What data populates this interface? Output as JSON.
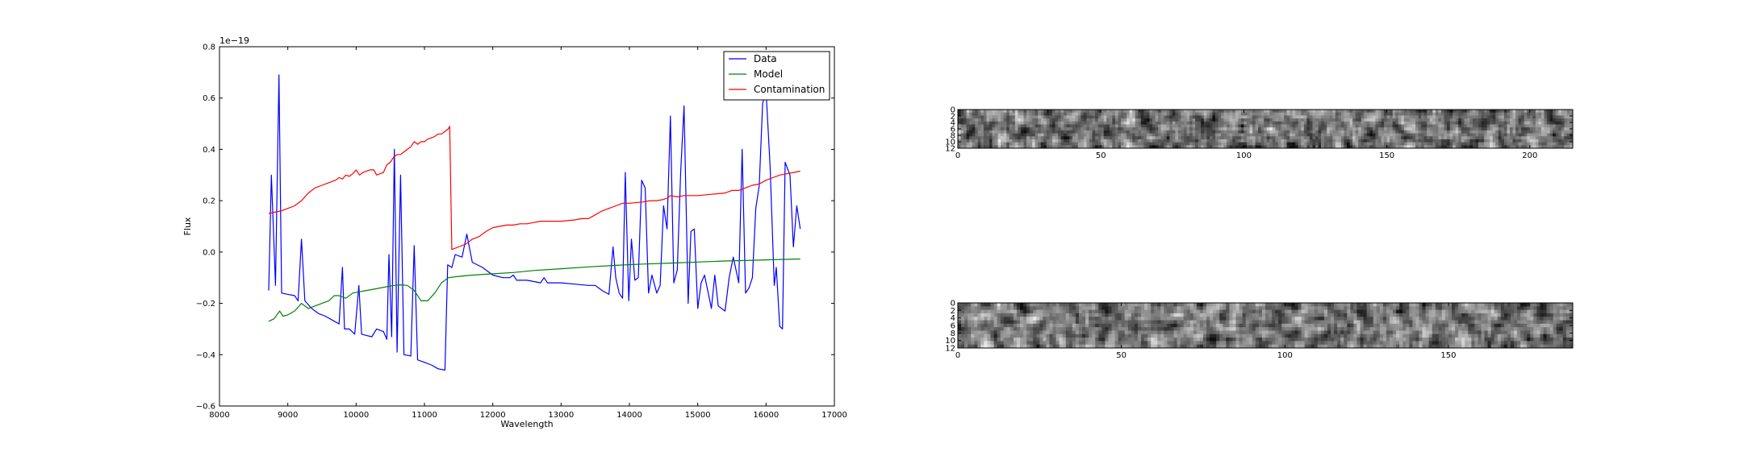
{
  "chart_data": [
    {
      "type": "line",
      "xlabel": "Wavelength",
      "ylabel": "Flux",
      "y_offset_label": "1e−19",
      "xlim": [
        8000,
        17000
      ],
      "ylim": [
        -0.6,
        0.8
      ],
      "xticks": [
        8000,
        9000,
        10000,
        11000,
        12000,
        13000,
        14000,
        15000,
        16000,
        17000
      ],
      "yticks": [
        -0.6,
        -0.4,
        -0.2,
        0.0,
        0.2,
        0.4,
        0.6,
        0.8
      ],
      "ytick_labels": [
        "−0.6",
        "−0.4",
        "−0.2",
        "0.0",
        "0.2",
        "0.4",
        "0.6",
        "0.8"
      ],
      "legend_position": "top-right",
      "series": [
        {
          "name": "Data",
          "color": "#0000ff",
          "points": [
            [
              8720,
              -0.15
            ],
            [
              8760,
              0.3
            ],
            [
              8820,
              -0.13
            ],
            [
              8870,
              0.69
            ],
            [
              8910,
              -0.16
            ],
            [
              9000,
              -0.165
            ],
            [
              9100,
              -0.17
            ],
            [
              9150,
              -0.19
            ],
            [
              9200,
              0.05
            ],
            [
              9250,
              -0.19
            ],
            [
              9350,
              -0.22
            ],
            [
              9450,
              -0.24
            ],
            [
              9550,
              -0.25
            ],
            [
              9650,
              -0.265
            ],
            [
              9750,
              -0.28
            ],
            [
              9800,
              -0.06
            ],
            [
              9830,
              -0.3
            ],
            [
              9900,
              -0.3
            ],
            [
              9980,
              -0.32
            ],
            [
              10040,
              -0.13
            ],
            [
              10080,
              -0.32
            ],
            [
              10150,
              -0.325
            ],
            [
              10230,
              -0.33
            ],
            [
              10300,
              -0.3
            ],
            [
              10400,
              -0.31
            ],
            [
              10450,
              -0.34
            ],
            [
              10480,
              -0.01
            ],
            [
              10520,
              -0.33
            ],
            [
              10560,
              0.4
            ],
            [
              10600,
              -0.39
            ],
            [
              10650,
              0.3
            ],
            [
              10700,
              -0.4
            ],
            [
              10800,
              -0.405
            ],
            [
              10850,
              0.025
            ],
            [
              10900,
              -0.42
            ],
            [
              11000,
              -0.43
            ],
            [
              11100,
              -0.44
            ],
            [
              11200,
              -0.455
            ],
            [
              11300,
              -0.46
            ],
            [
              11340,
              -0.05
            ],
            [
              11400,
              -0.06
            ],
            [
              11450,
              -0.01
            ],
            [
              11550,
              -0.02
            ],
            [
              11620,
              0.07
            ],
            [
              11700,
              -0.04
            ],
            [
              11850,
              -0.06
            ],
            [
              12000,
              -0.09
            ],
            [
              12150,
              -0.1
            ],
            [
              12250,
              -0.1
            ],
            [
              12300,
              -0.09
            ],
            [
              12350,
              -0.11
            ],
            [
              12500,
              -0.11
            ],
            [
              12600,
              -0.115
            ],
            [
              12700,
              -0.12
            ],
            [
              12750,
              -0.1
            ],
            [
              12800,
              -0.12
            ],
            [
              13000,
              -0.12
            ],
            [
              13200,
              -0.125
            ],
            [
              13400,
              -0.13
            ],
            [
              13500,
              -0.13
            ],
            [
              13600,
              -0.15
            ],
            [
              13700,
              -0.165
            ],
            [
              13760,
              0.02
            ],
            [
              13800,
              -0.1
            ],
            [
              13850,
              -0.16
            ],
            [
              13900,
              -0.18
            ],
            [
              13940,
              0.31
            ],
            [
              13990,
              -0.19
            ],
            [
              14030,
              0.05
            ],
            [
              14080,
              -0.11
            ],
            [
              14130,
              -0.1
            ],
            [
              14180,
              0.28
            ],
            [
              14230,
              0.25
            ],
            [
              14280,
              -0.16
            ],
            [
              14330,
              -0.09
            ],
            [
              14400,
              -0.16
            ],
            [
              14450,
              -0.13
            ],
            [
              14500,
              0.18
            ],
            [
              14550,
              0.09
            ],
            [
              14600,
              0.53
            ],
            [
              14650,
              -0.12
            ],
            [
              14700,
              -0.07
            ],
            [
              14750,
              0.31
            ],
            [
              14800,
              0.57
            ],
            [
              14860,
              -0.2
            ],
            [
              14900,
              0.08
            ],
            [
              14950,
              0.09
            ],
            [
              15000,
              -0.22
            ],
            [
              15050,
              -0.12
            ],
            [
              15100,
              -0.09
            ],
            [
              15200,
              -0.22
            ],
            [
              15250,
              -0.09
            ],
            [
              15300,
              -0.21
            ],
            [
              15400,
              -0.23
            ],
            [
              15460,
              -0.1
            ],
            [
              15520,
              -0.02
            ],
            [
              15600,
              -0.12
            ],
            [
              15650,
              0.4
            ],
            [
              15700,
              -0.16
            ],
            [
              15750,
              -0.14
            ],
            [
              15800,
              -0.1
            ],
            [
              15850,
              0.17
            ],
            [
              15900,
              0.26
            ],
            [
              15950,
              0.58
            ],
            [
              16000,
              0.63
            ],
            [
              16060,
              0.33
            ],
            [
              16120,
              -0.13
            ],
            [
              16150,
              -0.06
            ],
            [
              16200,
              -0.29
            ],
            [
              16240,
              -0.3
            ],
            [
              16280,
              0.35
            ],
            [
              16350,
              0.3
            ],
            [
              16400,
              0.02
            ],
            [
              16450,
              0.18
            ],
            [
              16500,
              0.09
            ]
          ]
        },
        {
          "name": "Model",
          "color": "#008000",
          "points": [
            [
              8720,
              -0.27
            ],
            [
              8800,
              -0.26
            ],
            [
              8880,
              -0.23
            ],
            [
              8930,
              -0.25
            ],
            [
              9000,
              -0.245
            ],
            [
              9100,
              -0.23
            ],
            [
              9200,
              -0.2
            ],
            [
              9300,
              -0.22
            ],
            [
              9400,
              -0.21
            ],
            [
              9500,
              -0.2
            ],
            [
              9600,
              -0.19
            ],
            [
              9680,
              -0.17
            ],
            [
              9750,
              -0.17
            ],
            [
              9850,
              -0.18
            ],
            [
              9950,
              -0.16
            ],
            [
              10050,
              -0.155
            ],
            [
              10150,
              -0.15
            ],
            [
              10250,
              -0.145
            ],
            [
              10350,
              -0.14
            ],
            [
              10450,
              -0.135
            ],
            [
              10550,
              -0.13
            ],
            [
              10650,
              -0.128
            ],
            [
              10750,
              -0.13
            ],
            [
              10850,
              -0.15
            ],
            [
              10950,
              -0.19
            ],
            [
              11050,
              -0.19
            ],
            [
              11150,
              -0.16
            ],
            [
              11250,
              -0.12
            ],
            [
              11350,
              -0.1
            ],
            [
              11500,
              -0.095
            ],
            [
              11700,
              -0.09
            ],
            [
              12000,
              -0.085
            ],
            [
              12300,
              -0.08
            ],
            [
              12600,
              -0.072
            ],
            [
              13000,
              -0.065
            ],
            [
              13400,
              -0.058
            ],
            [
              13800,
              -0.052
            ],
            [
              14200,
              -0.047
            ],
            [
              14600,
              -0.043
            ],
            [
              15000,
              -0.039
            ],
            [
              15400,
              -0.035
            ],
            [
              15800,
              -0.032
            ],
            [
              16200,
              -0.029
            ],
            [
              16500,
              -0.027
            ]
          ]
        },
        {
          "name": "Contamination",
          "color": "#ff0000",
          "points": [
            [
              8720,
              0.15
            ],
            [
              8800,
              0.155
            ],
            [
              8900,
              0.16
            ],
            [
              9000,
              0.17
            ],
            [
              9100,
              0.18
            ],
            [
              9200,
              0.2
            ],
            [
              9300,
              0.23
            ],
            [
              9400,
              0.25
            ],
            [
              9500,
              0.26
            ],
            [
              9600,
              0.27
            ],
            [
              9700,
              0.28
            ],
            [
              9750,
              0.29
            ],
            [
              9800,
              0.285
            ],
            [
              9850,
              0.3
            ],
            [
              9900,
              0.295
            ],
            [
              9950,
              0.305
            ],
            [
              10000,
              0.32
            ],
            [
              10050,
              0.3
            ],
            [
              10100,
              0.31
            ],
            [
              10200,
              0.32
            ],
            [
              10260,
              0.32
            ],
            [
              10300,
              0.3
            ],
            [
              10400,
              0.31
            ],
            [
              10450,
              0.34
            ],
            [
              10500,
              0.35
            ],
            [
              10550,
              0.37
            ],
            [
              10600,
              0.38
            ],
            [
              10650,
              0.38
            ],
            [
              10700,
              0.39
            ],
            [
              10750,
              0.4
            ],
            [
              10800,
              0.41
            ],
            [
              10850,
              0.43
            ],
            [
              10900,
              0.42
            ],
            [
              10950,
              0.43
            ],
            [
              11000,
              0.43
            ],
            [
              11050,
              0.44
            ],
            [
              11100,
              0.445
            ],
            [
              11150,
              0.45
            ],
            [
              11200,
              0.46
            ],
            [
              11250,
              0.46
            ],
            [
              11300,
              0.47
            ],
            [
              11350,
              0.48
            ],
            [
              11370,
              0.49
            ],
            [
              11400,
              0.01
            ],
            [
              11500,
              0.02
            ],
            [
              11600,
              0.03
            ],
            [
              11700,
              0.05
            ],
            [
              11800,
              0.06
            ],
            [
              11900,
              0.08
            ],
            [
              12000,
              0.095
            ],
            [
              12100,
              0.1
            ],
            [
              12200,
              0.105
            ],
            [
              12300,
              0.105
            ],
            [
              12400,
              0.11
            ],
            [
              12500,
              0.11
            ],
            [
              12600,
              0.115
            ],
            [
              12700,
              0.12
            ],
            [
              13000,
              0.12
            ],
            [
              13200,
              0.125
            ],
            [
              13300,
              0.13
            ],
            [
              13400,
              0.13
            ],
            [
              13500,
              0.145
            ],
            [
              13600,
              0.16
            ],
            [
              13700,
              0.17
            ],
            [
              13800,
              0.18
            ],
            [
              13900,
              0.19
            ],
            [
              14000,
              0.19
            ],
            [
              14200,
              0.195
            ],
            [
              14300,
              0.2
            ],
            [
              14400,
              0.2
            ],
            [
              14500,
              0.205
            ],
            [
              14550,
              0.21
            ],
            [
              14600,
              0.22
            ],
            [
              14700,
              0.215
            ],
            [
              14800,
              0.22
            ],
            [
              15000,
              0.22
            ],
            [
              15200,
              0.225
            ],
            [
              15400,
              0.23
            ],
            [
              15500,
              0.24
            ],
            [
              15600,
              0.24
            ],
            [
              15700,
              0.25
            ],
            [
              15800,
              0.26
            ],
            [
              15900,
              0.265
            ],
            [
              16000,
              0.28
            ],
            [
              16100,
              0.29
            ],
            [
              16200,
              0.3
            ],
            [
              16300,
              0.305
            ],
            [
              16400,
              0.31
            ],
            [
              16500,
              0.315
            ]
          ]
        }
      ]
    },
    {
      "type": "heatmap",
      "xlim": [
        0,
        215
      ],
      "ylim": [
        12,
        0
      ],
      "xticks": [
        0,
        50,
        100,
        150,
        200
      ],
      "yticks": [
        0,
        2,
        4,
        6,
        8,
        10,
        12
      ],
      "colormap": "gray"
    },
    {
      "type": "heatmap",
      "xlim": [
        0,
        188
      ],
      "ylim": [
        12,
        0
      ],
      "xticks": [
        0,
        50,
        100,
        150
      ],
      "yticks": [
        0,
        2,
        4,
        6,
        8,
        10,
        12
      ],
      "colormap": "gray"
    }
  ]
}
